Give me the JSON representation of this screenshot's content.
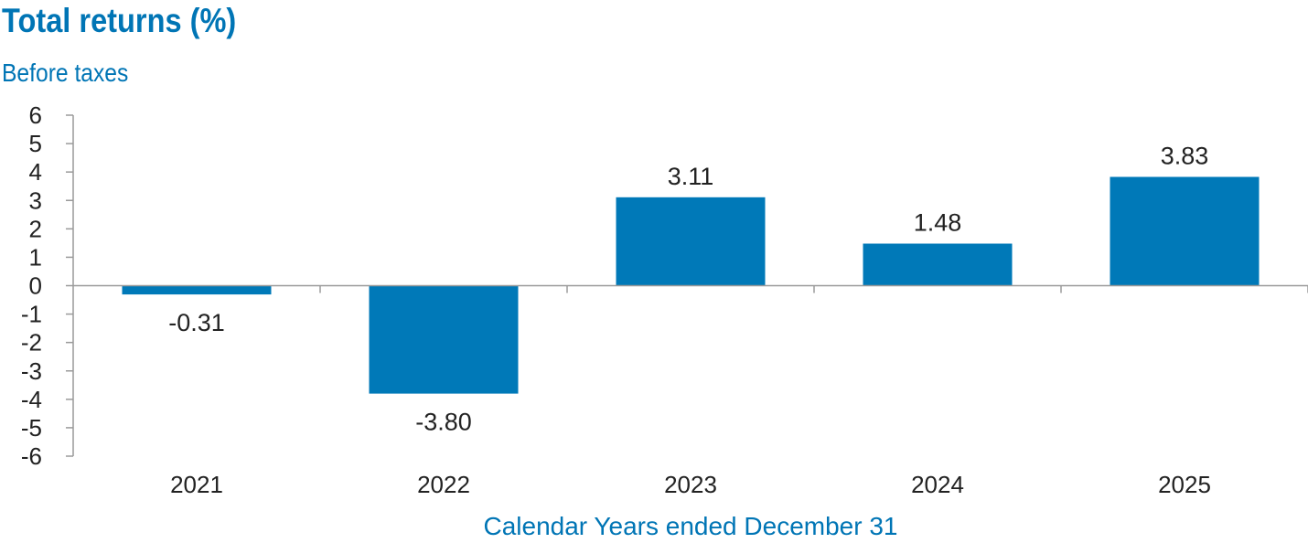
{
  "chart_data": {
    "type": "bar",
    "title": "Total returns (%)",
    "subtitle": "Before taxes",
    "xlabel": "Calendar Years ended December 31",
    "ylabel": "",
    "categories": [
      "2021",
      "2022",
      "2023",
      "2024",
      "2025"
    ],
    "values": [
      -0.31,
      -3.8,
      3.11,
      1.48,
      3.83
    ],
    "value_labels": [
      "-0.31",
      "-3.80",
      "3.11",
      "1.48",
      "3.83"
    ],
    "ylim": [
      -6,
      6
    ],
    "yticks": [
      6,
      5,
      4,
      3,
      2,
      1,
      0,
      -1,
      -2,
      -3,
      -4,
      -5,
      -6
    ],
    "ytick_labels": [
      "6",
      "5",
      "4",
      "3",
      "2",
      "1",
      "0",
      "-1",
      "-2",
      "-3",
      "-4",
      "-5",
      "-6"
    ],
    "grid": false,
    "legend": "none",
    "bar_color": "#0079b8",
    "title_color": "#0075b5"
  }
}
